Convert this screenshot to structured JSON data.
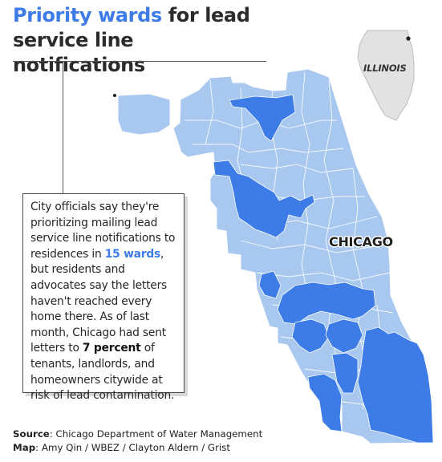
{
  "title": {
    "accent": "Priority wards",
    "rest_line1": " for lead",
    "line2": "service line notifications"
  },
  "note": {
    "part1": "City officials say they're prioritizing mailing lead service line notifications to residences in ",
    "wards": "15 wards",
    "part2": ", but residents and advocates say the letters haven't reached every home there. As of last month, Chicago had sent letters to ",
    "percent": "7 percent",
    "part3": " of tenants, landlords, and homeowners citywide at risk of lead contamination."
  },
  "labels": {
    "city": "CHICAGO",
    "state": "ILLINOIS"
  },
  "credits": {
    "source_label": "Source",
    "source_text": ": Chicago Department of Water Management",
    "map_label": "Map",
    "map_text": ": Amy Qin / WBEZ / Clayton Aldern / Grist"
  },
  "legend_colors": {
    "priority_ward": "#3d7be6",
    "other_ward": "#a8c8f0",
    "ward_border": "#ffffff",
    "state_fill": "#e2e2e2"
  },
  "priority_ward_count": 15
}
